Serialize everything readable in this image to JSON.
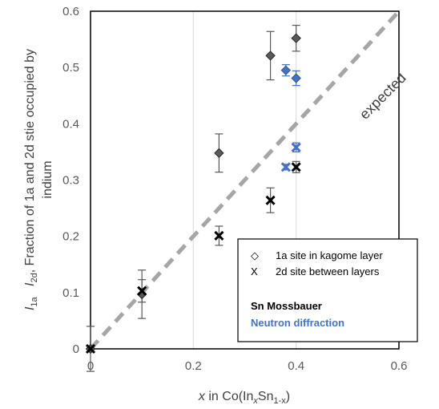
{
  "chart_data": {
    "type": "scatter",
    "title": "",
    "xlabel": {
      "prefix": "x",
      "mid": " in Co(In",
      "sub1": "x",
      "mid2": "Sn",
      "sub2": "1-x",
      "suffix": ")"
    },
    "ylabel": {
      "line1": {
        "a": "I",
        "asub": "1a",
        "sep": "   ",
        "b": "I",
        "bsub": "2d",
        "rest": ", Fraction of 1a and 2d stie occupied by"
      },
      "line2": "indium"
    },
    "xlim": [
      0,
      0.6
    ],
    "ylim": [
      0,
      0.6
    ],
    "xticks": [
      "0",
      "0.2",
      "0.4",
      "0.6"
    ],
    "yticks": [
      "0",
      "0.1",
      "0.2",
      "0.3",
      "0.4",
      "0.5",
      "0.6"
    ],
    "grid": "vertical",
    "reference_line": {
      "label": "expected",
      "x": [
        0,
        0.6
      ],
      "y": [
        0,
        0.6
      ],
      "style": "dashed"
    },
    "legend": {
      "position": "bottom-right",
      "markers": [
        {
          "symbol": "◇",
          "label": "1a site in kagome layer"
        },
        {
          "symbol": "X",
          "label": "2d site between layers"
        }
      ],
      "methods": [
        {
          "label": "Sn Mossbauer",
          "color": "#000000"
        },
        {
          "label": "Neutron diffraction",
          "color": "#4472c4"
        }
      ]
    },
    "series": [
      {
        "site": "1a",
        "method": "Sn Mossbauer",
        "marker": "diamond",
        "color": "#595959",
        "points": [
          {
            "x": 0.0,
            "y": 0.0,
            "err": 0.04
          },
          {
            "x": 0.1,
            "y": 0.097,
            "err": 0.043
          },
          {
            "x": 0.25,
            "y": 0.348,
            "err": 0.034
          },
          {
            "x": 0.35,
            "y": 0.521,
            "err": 0.043
          },
          {
            "x": 0.4,
            "y": 0.552,
            "err": 0.023
          }
        ]
      },
      {
        "site": "2d",
        "method": "Sn Mossbauer",
        "marker": "x",
        "color": "#000000",
        "points": [
          {
            "x": 0.0,
            "y": 0.0,
            "err": 0.0
          },
          {
            "x": 0.1,
            "y": 0.103,
            "err": 0.02
          },
          {
            "x": 0.25,
            "y": 0.201,
            "err": 0.017
          },
          {
            "x": 0.35,
            "y": 0.264,
            "err": 0.022
          },
          {
            "x": 0.4,
            "y": 0.323,
            "err": 0.01
          }
        ]
      },
      {
        "site": "1a",
        "method": "Neutron diffraction",
        "marker": "diamond",
        "color": "#4472c4",
        "points": [
          {
            "x": 0.38,
            "y": 0.495,
            "err": 0.01
          },
          {
            "x": 0.4,
            "y": 0.481,
            "err": 0.013
          }
        ]
      },
      {
        "site": "2d",
        "method": "Neutron diffraction",
        "marker": "x",
        "color": "#4472c4",
        "points": [
          {
            "x": 0.38,
            "y": 0.323,
            "err": 0.005
          },
          {
            "x": 0.4,
            "y": 0.358,
            "err": 0.008
          }
        ]
      }
    ]
  }
}
